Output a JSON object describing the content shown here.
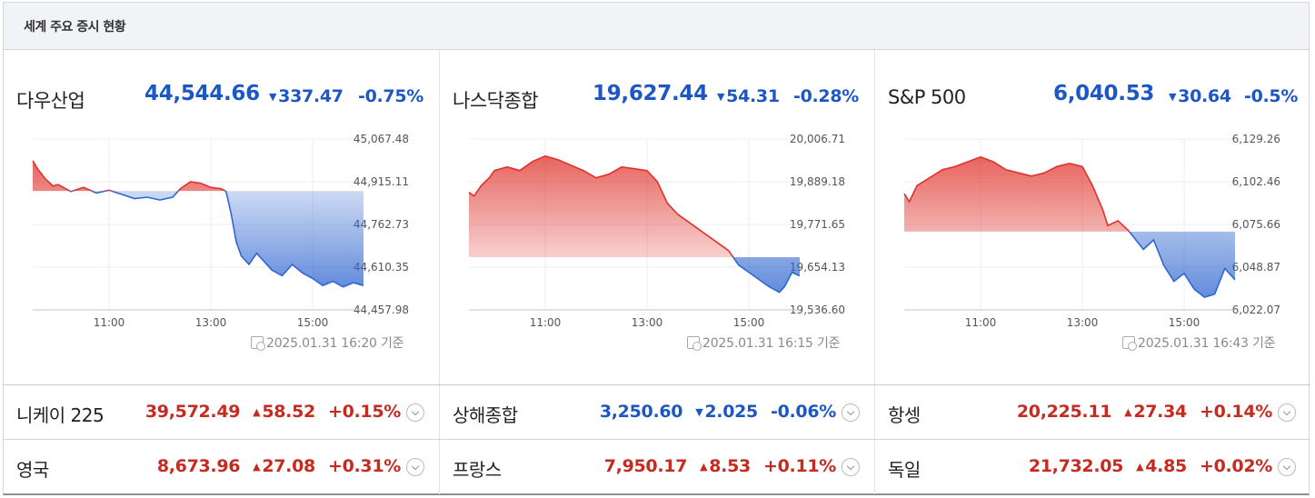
{
  "header": {
    "title": "세계 주요 증시 현황"
  },
  "panels": [
    {
      "name": "다우산업",
      "value": "44,544.66",
      "direction": "down",
      "arrow": "▼",
      "change": "337.47",
      "percent": "-0.75%",
      "timestamp": "2025.01.31 16:20 기준",
      "chart_data": {
        "type": "line",
        "y_ticks": [
          "45,067.48",
          "44,915.11",
          "44,762.73",
          "44,610.35",
          "44,457.98"
        ],
        "x_ticks": [
          "11:00",
          "13:00",
          "15:00"
        ],
        "ylim": [
          44457.98,
          45067.48
        ],
        "baseline": 44882.13,
        "close_time": 16.0,
        "x_range": [
          9.5,
          16.0
        ],
        "points": [
          [
            9.5,
            44990
          ],
          [
            9.6,
            44960
          ],
          [
            9.75,
            44925
          ],
          [
            9.9,
            44900
          ],
          [
            10.0,
            44905
          ],
          [
            10.25,
            44880
          ],
          [
            10.5,
            44895
          ],
          [
            10.75,
            44875
          ],
          [
            11.0,
            44885
          ],
          [
            11.25,
            44870
          ],
          [
            11.5,
            44855
          ],
          [
            11.75,
            44860
          ],
          [
            12.0,
            44850
          ],
          [
            12.25,
            44860
          ],
          [
            12.4,
            44890
          ],
          [
            12.6,
            44915
          ],
          [
            12.8,
            44910
          ],
          [
            13.0,
            44895
          ],
          [
            13.2,
            44890
          ],
          [
            13.3,
            44880
          ],
          [
            13.4,
            44800
          ],
          [
            13.5,
            44700
          ],
          [
            13.6,
            44650
          ],
          [
            13.75,
            44620
          ],
          [
            13.9,
            44660
          ],
          [
            14.0,
            44640
          ],
          [
            14.2,
            44600
          ],
          [
            14.4,
            44580
          ],
          [
            14.6,
            44620
          ],
          [
            14.8,
            44590
          ],
          [
            15.0,
            44570
          ],
          [
            15.2,
            44545
          ],
          [
            15.4,
            44560
          ],
          [
            15.6,
            44540
          ],
          [
            15.8,
            44555
          ],
          [
            16.0,
            44545
          ]
        ]
      }
    },
    {
      "name": "나스닥종합",
      "value": "19,627.44",
      "direction": "down",
      "arrow": "▼",
      "change": "54.31",
      "percent": "-0.28%",
      "timestamp": "2025.01.31 16:15 기준",
      "chart_data": {
        "type": "line",
        "y_ticks": [
          "20,006.71",
          "19,889.18",
          "19,771.65",
          "19,654.13",
          "19,536.60"
        ],
        "x_ticks": [
          "11:00",
          "13:00",
          "15:00"
        ],
        "ylim": [
          19536.6,
          20006.71
        ],
        "baseline": 19681.75,
        "close_time": 16.0,
        "x_range": [
          9.5,
          16.0
        ],
        "points": [
          [
            9.5,
            19860
          ],
          [
            9.6,
            19850
          ],
          [
            9.75,
            19880
          ],
          [
            9.9,
            19900
          ],
          [
            10.0,
            19920
          ],
          [
            10.25,
            19930
          ],
          [
            10.5,
            19920
          ],
          [
            10.75,
            19945
          ],
          [
            11.0,
            19960
          ],
          [
            11.25,
            19950
          ],
          [
            11.5,
            19935
          ],
          [
            11.75,
            19920
          ],
          [
            12.0,
            19900
          ],
          [
            12.25,
            19910
          ],
          [
            12.5,
            19930
          ],
          [
            12.75,
            19925
          ],
          [
            13.0,
            19920
          ],
          [
            13.2,
            19890
          ],
          [
            13.4,
            19830
          ],
          [
            13.6,
            19800
          ],
          [
            13.8,
            19780
          ],
          [
            14.0,
            19760
          ],
          [
            14.2,
            19740
          ],
          [
            14.4,
            19720
          ],
          [
            14.6,
            19700
          ],
          [
            14.8,
            19660
          ],
          [
            15.0,
            19640
          ],
          [
            15.2,
            19620
          ],
          [
            15.4,
            19600
          ],
          [
            15.6,
            19585
          ],
          [
            15.7,
            19600
          ],
          [
            15.85,
            19640
          ],
          [
            16.0,
            19630
          ]
        ]
      }
    },
    {
      "name": "S&P 500",
      "value": "6,040.53",
      "direction": "down",
      "arrow": "▼",
      "change": "30.64",
      "percent": "-0.5%",
      "timestamp": "2025.01.31 16:43 기준",
      "chart_data": {
        "type": "line",
        "y_ticks": [
          "6,129.26",
          "6,102.46",
          "6,075.66",
          "6,048.87",
          "6,022.07"
        ],
        "x_ticks": [
          "11:00",
          "13:00",
          "15:00"
        ],
        "ylim": [
          6022.07,
          6129.26
        ],
        "baseline": 6071.17,
        "close_time": 16.0,
        "x_range": [
          9.5,
          16.0
        ],
        "points": [
          [
            9.5,
            6095
          ],
          [
            9.6,
            6090
          ],
          [
            9.75,
            6100
          ],
          [
            10.0,
            6105
          ],
          [
            10.25,
            6110
          ],
          [
            10.5,
            6112
          ],
          [
            10.75,
            6115
          ],
          [
            11.0,
            6118
          ],
          [
            11.25,
            6115
          ],
          [
            11.5,
            6110
          ],
          [
            11.75,
            6108
          ],
          [
            12.0,
            6106
          ],
          [
            12.25,
            6108
          ],
          [
            12.5,
            6112
          ],
          [
            12.75,
            6114
          ],
          [
            13.0,
            6112
          ],
          [
            13.2,
            6100
          ],
          [
            13.4,
            6085
          ],
          [
            13.5,
            6075
          ],
          [
            13.7,
            6078
          ],
          [
            13.9,
            6072
          ],
          [
            14.0,
            6068
          ],
          [
            14.2,
            6060
          ],
          [
            14.4,
            6066
          ],
          [
            14.6,
            6050
          ],
          [
            14.8,
            6040
          ],
          [
            15.0,
            6045
          ],
          [
            15.2,
            6035
          ],
          [
            15.4,
            6030
          ],
          [
            15.6,
            6032
          ],
          [
            15.8,
            6048
          ],
          [
            16.0,
            6041
          ]
        ]
      }
    }
  ],
  "rows": [
    [
      {
        "name": "니케이 225",
        "value": "39,572.49",
        "direction": "up",
        "arrow": "▲",
        "change": "58.52",
        "percent": "+0.15%"
      },
      {
        "name": "상해종합",
        "value": "3,250.60",
        "direction": "down",
        "arrow": "▼",
        "change": "2.025",
        "percent": "-0.06%"
      },
      {
        "name": "항셍",
        "value": "20,225.11",
        "direction": "up",
        "arrow": "▲",
        "change": "27.34",
        "percent": "+0.14%"
      }
    ],
    [
      {
        "name": "영국",
        "value": "8,673.96",
        "direction": "up",
        "arrow": "▲",
        "change": "27.08",
        "percent": "+0.31%"
      },
      {
        "name": "프랑스",
        "value": "7,950.17",
        "direction": "up",
        "arrow": "▲",
        "change": "8.53",
        "percent": "+0.11%"
      },
      {
        "name": "독일",
        "value": "21,732.05",
        "direction": "up",
        "arrow": "▲",
        "change": "4.85",
        "percent": "+0.02%"
      }
    ]
  ],
  "colors": {
    "up": "#e0312a",
    "down": "#2f66d0",
    "up_text": "#c62b22",
    "down_text": "#1d57c6"
  }
}
